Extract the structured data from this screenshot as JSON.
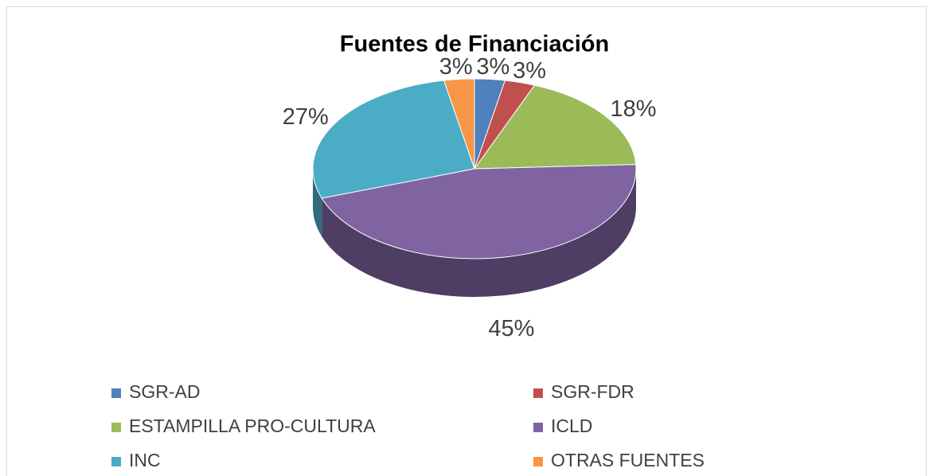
{
  "chart_data": {
    "type": "pie",
    "title": "Fuentes de Financiación",
    "categories": [
      "SGR-AD",
      "SGR-FDR",
      "ESTAMPILLA PRO-CULTURA",
      "ICLD",
      "INC",
      "OTRAS FUENTES"
    ],
    "values": [
      3,
      3,
      18,
      45,
      27,
      3
    ],
    "value_labels": [
      "3%",
      "3%",
      "18%",
      "45%",
      "27%",
      "3%"
    ],
    "colors": [
      "#4f81bd",
      "#c0504d",
      "#9bbb59",
      "#8064a2",
      "#4bacc6",
      "#f79646"
    ],
    "legend": "bottom",
    "three_d": true
  }
}
